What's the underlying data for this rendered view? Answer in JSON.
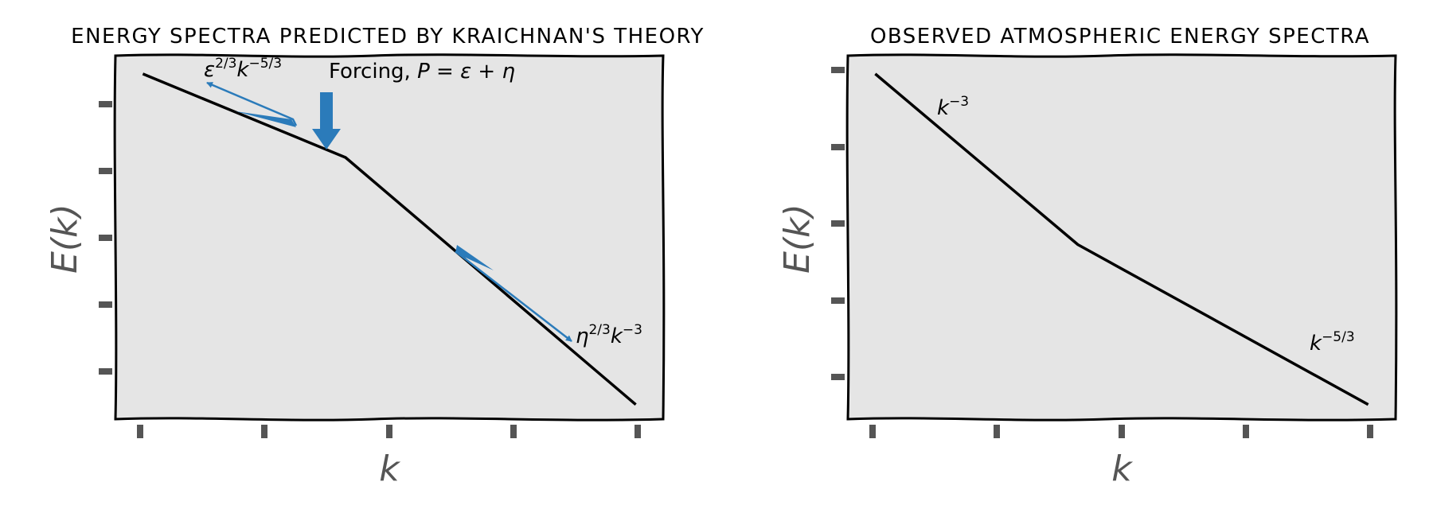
{
  "chart_data": [
    {
      "type": "line",
      "title": "ENERGY SPECTRA PREDICTED BY KRAICHNAN'S THEORY",
      "xlabel": "k",
      "ylabel": "E(k)",
      "xlim": [
        0,
        1
      ],
      "ylim": [
        0,
        1
      ],
      "grid": false,
      "facecolor": "#e5e5e5",
      "line_color": "#000000",
      "arrow_color": "#2b7bba",
      "series": [
        {
          "x": [
            0.05,
            0.42,
            0.95
          ],
          "y": [
            0.95,
            0.72,
            0.04
          ]
        }
      ],
      "annotations": [
        {
          "base": "ε",
          "sup": "2/3",
          "base2": "k",
          "sup2": "−5/3",
          "point": [
            0.18,
            0.92
          ]
        },
        {
          "text": "Forcing, ",
          "math": "P = ε + η",
          "point": [
            0.42,
            0.95
          ]
        },
        {
          "base": "η",
          "sup": "2/3",
          "base2": "k",
          "sup2": "−3",
          "point": [
            0.84,
            0.21
          ]
        }
      ]
    },
    {
      "type": "line",
      "title": "OBSERVED ATMOSPHERIC ENERGY SPECTRA",
      "xlabel": "k",
      "ylabel": "E(k)",
      "xlim": [
        0,
        1
      ],
      "ylim": [
        0,
        1
      ],
      "grid": false,
      "facecolor": "#e5e5e5",
      "line_color": "#000000",
      "series": [
        {
          "x": [
            0.05,
            0.42,
            0.95
          ],
          "y": [
            0.95,
            0.48,
            0.04
          ]
        }
      ],
      "annotations": [
        {
          "base": "k",
          "sup": "−3",
          "point": [
            0.18,
            0.82
          ]
        },
        {
          "base": "k",
          "sup": "−5/3",
          "point": [
            0.85,
            0.19
          ]
        }
      ]
    }
  ]
}
